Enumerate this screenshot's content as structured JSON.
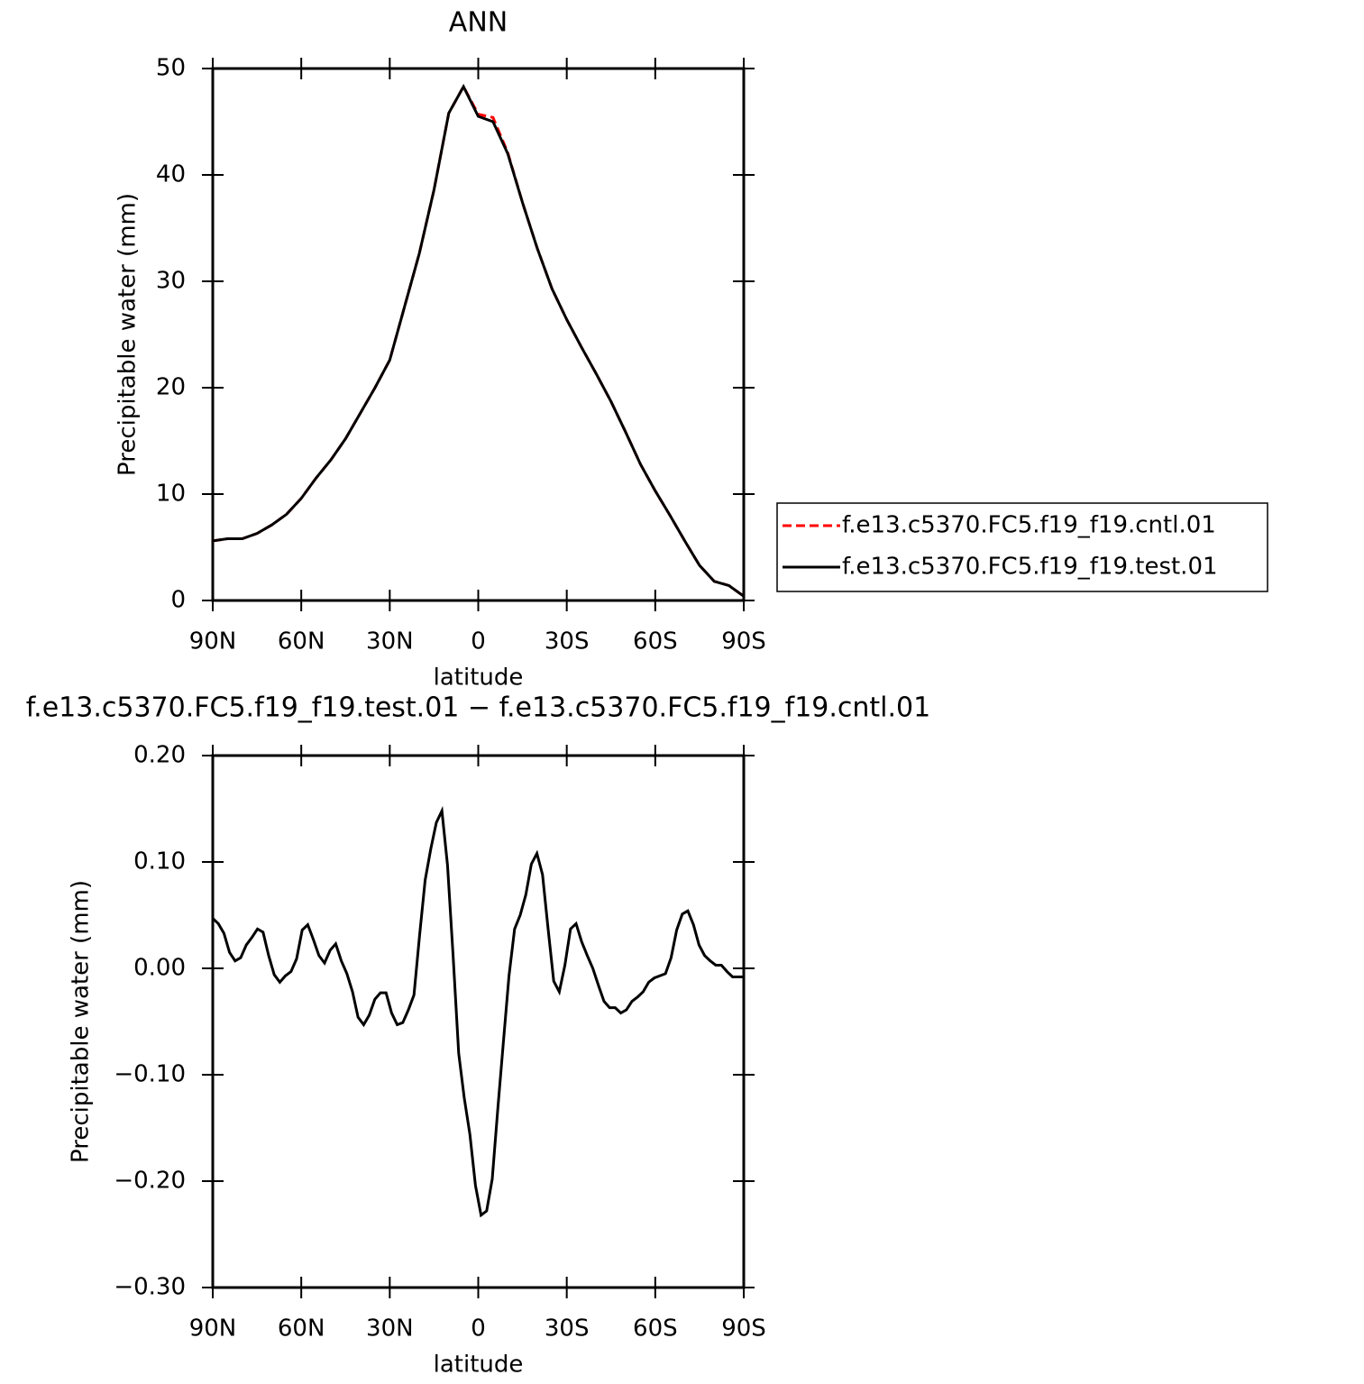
{
  "chart_data": [
    {
      "type": "line",
      "title": "ANN",
      "xlabel": "latitude",
      "ylabel": "Precipitable water (mm)",
      "xlim": [
        90,
        -90
      ],
      "ylim": [
        0,
        50
      ],
      "xticks": [
        {
          "value": 90,
          "label": "90N"
        },
        {
          "value": 60,
          "label": "60N"
        },
        {
          "value": 30,
          "label": "30N"
        },
        0,
        {
          "value": -30,
          "label": "30S"
        },
        {
          "value": -60,
          "label": "60S"
        },
        {
          "value": -90,
          "label": "90S"
        }
      ],
      "yticks": [
        0,
        10,
        20,
        30,
        40,
        50
      ],
      "x": [
        90,
        85,
        80,
        75,
        70,
        65,
        60,
        55,
        50,
        45,
        40,
        35,
        30,
        25,
        20,
        15,
        10,
        5,
        0,
        -5,
        -10,
        -15,
        -20,
        -25,
        -30,
        -35,
        -40,
        -45,
        -50,
        -55,
        -60,
        -65,
        -70,
        -75,
        -80,
        -85,
        -90
      ],
      "series": [
        {
          "name": "f.e13.c5370.FC5.f19_f19.cntl.01",
          "color": "#ff0000",
          "dash": "dashed",
          "values": [
            5.6,
            5.8,
            5.8,
            6.3,
            7.1,
            8.1,
            9.6,
            11.5,
            13.2,
            15.2,
            17.6,
            20.0,
            22.6,
            27.6,
            32.6,
            38.6,
            45.8,
            48.3,
            45.7,
            45.4,
            42.1,
            37.4,
            33.1,
            29.3,
            26.4,
            23.8,
            21.3,
            18.7,
            15.8,
            12.8,
            10.3,
            8.0,
            5.6,
            3.3,
            1.8,
            1.4,
            0.4
          ]
        },
        {
          "name": "f.e13.c5370.FC5.f19_f19.test.01",
          "color": "#000000",
          "dash": "solid",
          "values": [
            5.6,
            5.8,
            5.8,
            6.3,
            7.1,
            8.1,
            9.6,
            11.5,
            13.2,
            15.2,
            17.6,
            20.0,
            22.6,
            27.6,
            32.6,
            38.6,
            45.8,
            48.3,
            45.5,
            45.0,
            42.0,
            37.4,
            33.1,
            29.3,
            26.4,
            23.8,
            21.3,
            18.7,
            15.8,
            12.8,
            10.3,
            8.0,
            5.6,
            3.3,
            1.8,
            1.4,
            0.4
          ]
        }
      ]
    },
    {
      "type": "line",
      "title": "f.e13.c5370.FC5.f19_f19.test.01 − f.e13.c5370.FC5.f19_f19.cntl.01",
      "xlabel": "latitude",
      "ylabel": "Precipitable water (mm)",
      "xlim": [
        90,
        -90
      ],
      "ylim": [
        -0.3,
        0.2
      ],
      "xticks": [
        {
          "value": 90,
          "label": "90N"
        },
        {
          "value": 60,
          "label": "60N"
        },
        {
          "value": 30,
          "label": "30N"
        },
        0,
        {
          "value": -30,
          "label": "30S"
        },
        {
          "value": -60,
          "label": "60S"
        },
        {
          "value": -90,
          "label": "90S"
        }
      ],
      "yticks": [
        {
          "value": 0.2,
          "label": "0.20"
        },
        {
          "value": 0.1,
          "label": "0.10"
        },
        {
          "value": 0,
          "label": "0.00"
        },
        {
          "value": -0.1,
          "label": "−0.10"
        },
        {
          "value": -0.2,
          "label": "−0.20"
        },
        {
          "value": -0.3,
          "label": "−0.30"
        }
      ],
      "x": [
        90,
        88.11,
        86.21,
        84.32,
        82.42,
        80.53,
        78.63,
        76.74,
        74.84,
        72.95,
        71.05,
        69.16,
        67.26,
        65.37,
        63.47,
        61.58,
        59.68,
        57.79,
        55.89,
        54.0,
        52.11,
        50.21,
        48.32,
        46.42,
        44.53,
        42.63,
        40.74,
        38.84,
        36.95,
        35.05,
        33.16,
        31.26,
        29.37,
        27.47,
        25.58,
        23.68,
        21.79,
        19.89,
        18.0,
        16.11,
        14.21,
        12.32,
        10.42,
        8.53,
        6.63,
        4.74,
        2.84,
        0.95,
        -0.95,
        -2.84,
        -4.74,
        -6.63,
        -8.53,
        -10.42,
        -12.32,
        -14.21,
        -16.11,
        -18.0,
        -19.89,
        -21.79,
        -23.68,
        -25.58,
        -27.47,
        -29.37,
        -31.26,
        -33.16,
        -35.05,
        -36.95,
        -38.84,
        -40.74,
        -42.63,
        -44.53,
        -46.42,
        -48.32,
        -50.21,
        -52.11,
        -54.0,
        -55.89,
        -57.79,
        -59.68,
        -61.58,
        -63.47,
        -65.37,
        -67.26,
        -69.16,
        -71.05,
        -72.95,
        -74.84,
        -76.74,
        -78.63,
        -80.53,
        -82.42,
        -84.32,
        -86.21,
        -88.11,
        -90
      ],
      "series": [
        {
          "color": "#000000",
          "dash": "solid",
          "values": [
            0.047,
            0.042,
            0.033,
            0.015,
            0.007,
            0.01,
            0.022,
            0.029,
            0.037,
            0.034,
            0.012,
            -0.006,
            -0.013,
            -0.007,
            -0.003,
            0.009,
            0.036,
            0.041,
            0.027,
            0.012,
            0.005,
            0.017,
            0.023,
            0.007,
            -0.005,
            -0.022,
            -0.046,
            -0.053,
            -0.044,
            -0.029,
            -0.023,
            -0.023,
            -0.042,
            -0.053,
            -0.051,
            -0.039,
            -0.025,
            0.031,
            0.083,
            0.112,
            0.137,
            0.148,
            0.097,
            0.012,
            -0.08,
            -0.122,
            -0.156,
            -0.204,
            -0.232,
            -0.228,
            -0.198,
            -0.132,
            -0.069,
            -0.007,
            0.037,
            0.05,
            0.069,
            0.098,
            0.108,
            0.088,
            0.037,
            -0.012,
            -0.022,
            0.003,
            0.037,
            0.042,
            0.025,
            0.012,
            0.0,
            -0.016,
            -0.031,
            -0.037,
            -0.037,
            -0.042,
            -0.039,
            -0.031,
            -0.027,
            -0.022,
            -0.013,
            -0.009,
            -0.007,
            -0.005,
            0.01,
            0.036,
            0.051,
            0.054,
            0.041,
            0.022,
            0.012,
            0.007,
            0.003,
            0.003,
            -0.003,
            -0.008,
            -0.008,
            -0.008
          ]
        }
      ]
    }
  ]
}
